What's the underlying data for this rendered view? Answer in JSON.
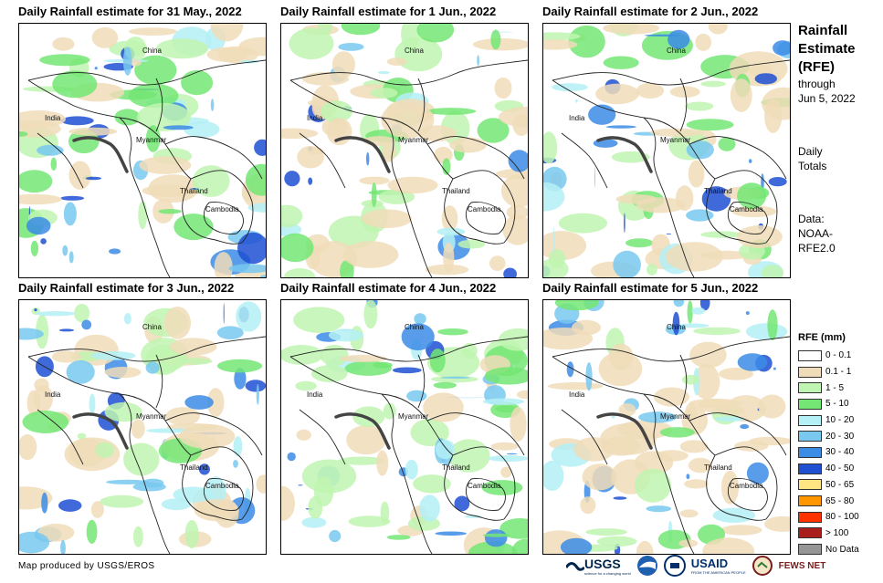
{
  "panels": [
    {
      "title": "Daily Rainfall estimate for 31 May., 2022",
      "labels": {
        "china": "China",
        "india": "India",
        "myanmar": "Myanmar",
        "thailand": "Thailand",
        "cambodia": "Cambodia"
      }
    },
    {
      "title": "Daily Rainfall estimate for 1 Jun., 2022",
      "labels": {
        "china": "China",
        "india": "India",
        "myanmar": "Myanmar",
        "thailand": "Thailand",
        "cambodia": "Cambodia"
      }
    },
    {
      "title": "Daily Rainfall estimate for 2 Jun., 2022",
      "labels": {
        "china": "China",
        "india": "India",
        "myanmar": "Myanmar",
        "thailand": "Thailand",
        "cambodia": "Cambodia"
      }
    },
    {
      "title": "Daily Rainfall estimate for 3 Jun., 2022",
      "labels": {
        "china": "China",
        "india": "India",
        "myanmar": "Myanmar",
        "thailand": "Thailand",
        "cambodia": "Cambodia"
      }
    },
    {
      "title": "Daily Rainfall estimate for 4 Jun., 2022",
      "labels": {
        "china": "China",
        "india": "India",
        "myanmar": "Myanmar",
        "thailand": "Thailand",
        "cambodia": "Cambodia"
      }
    },
    {
      "title": "Daily Rainfall estimate for 5 Jun., 2022",
      "labels": {
        "china": "China",
        "india": "India",
        "myanmar": "Myanmar",
        "thailand": "Thailand",
        "cambodia": "Cambodia"
      }
    }
  ],
  "sidebar": {
    "title": [
      "Rainfall",
      "Estimate",
      "(RFE)"
    ],
    "through": [
      "through",
      "Jun 5, 2022"
    ],
    "totals": [
      "Daily",
      "Totals"
    ],
    "data": [
      "Data:",
      "NOAA-",
      "RFE2.0"
    ]
  },
  "legend": {
    "title": "RFE (mm)",
    "items": [
      {
        "label": "0 - 0.1",
        "color": "#ffffff"
      },
      {
        "label": "0.1 - 1",
        "color": "#f0dcb8"
      },
      {
        "label": "1 - 5",
        "color": "#bff5b0"
      },
      {
        "label": "5 - 10",
        "color": "#73e673"
      },
      {
        "label": "10 - 20",
        "color": "#b4f0f5"
      },
      {
        "label": "20 - 30",
        "color": "#78c8f0"
      },
      {
        "label": "30 - 40",
        "color": "#3c8ce6"
      },
      {
        "label": "40 - 50",
        "color": "#1e50d2"
      },
      {
        "label": "50 - 65",
        "color": "#ffe682"
      },
      {
        "label": "65 - 80",
        "color": "#ff9600"
      },
      {
        "label": "80 - 100",
        "color": "#ff3200"
      },
      {
        "label": "> 100",
        "color": "#aa1e1e"
      },
      {
        "label": "No Data",
        "color": "#969696"
      }
    ]
  },
  "credit": "Map produced by USGS/EROS",
  "logos": {
    "usgs": "USGS",
    "usgs_tagline": "science for a changing world",
    "usaid": "USAID",
    "usaid_tagline": "FROM THE AMERICAN PEOPLE",
    "fewsnet": "FEWS NET"
  }
}
